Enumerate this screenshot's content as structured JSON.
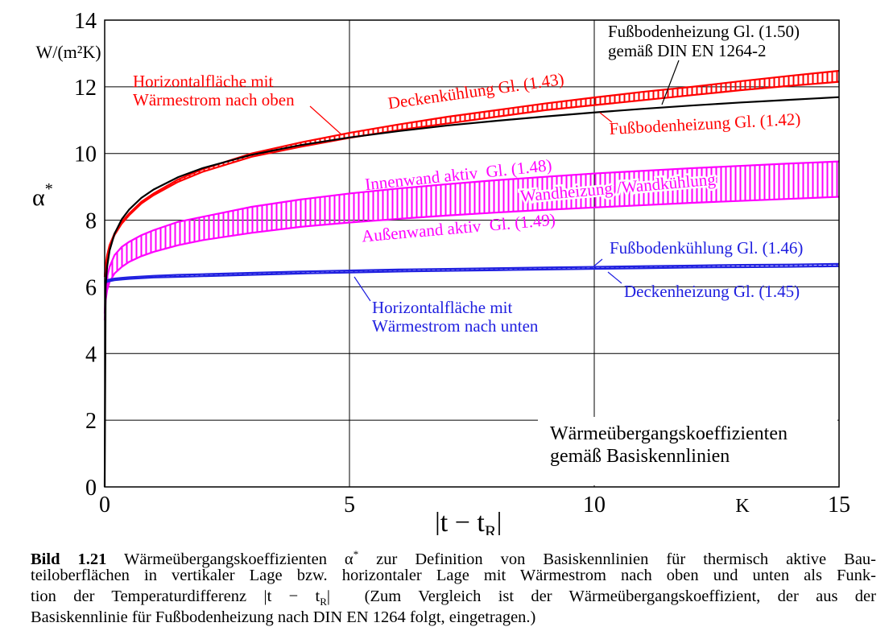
{
  "chart_data": {
    "type": "line",
    "y_unit": "W/(m²K)",
    "x_unit": "K",
    "ylabel": [
      "α",
      "*"
    ],
    "xlabel": [
      "|t − t",
      "R",
      "|"
    ],
    "x": [
      0,
      0.02,
      0.05,
      0.1,
      0.2,
      0.35,
      0.5,
      0.75,
      1,
      1.5,
      2,
      3,
      4,
      5,
      6,
      7,
      8,
      9,
      10,
      11,
      12,
      13,
      14,
      15
    ],
    "series": [
      {
        "name": "Deckenkühlung Gl. (1.43)",
        "color": "#ff0000",
        "values": [
          6.3,
          6.65,
          6.95,
          7.25,
          7.6,
          7.95,
          8.2,
          8.55,
          8.8,
          9.22,
          9.53,
          10.0,
          10.33,
          10.62,
          10.87,
          11.1,
          11.3,
          11.5,
          11.68,
          11.85,
          12.0,
          12.17,
          12.33,
          12.48
        ]
      },
      {
        "name": "Fußbodenheizung Gl. (1.42)",
        "color": "#ff0000",
        "values": [
          6.3,
          6.6,
          6.9,
          7.2,
          7.55,
          7.9,
          8.15,
          8.5,
          8.75,
          9.15,
          9.45,
          9.9,
          10.2,
          10.47,
          10.7,
          10.9,
          11.1,
          11.3,
          11.45,
          11.6,
          11.75,
          11.9,
          12.03,
          12.15
        ]
      },
      {
        "name": "Innenwand aktiv  Gl. (1.48)",
        "color": "#ff00ff",
        "values": [
          5.2,
          5.9,
          6.3,
          6.6,
          6.95,
          7.2,
          7.35,
          7.55,
          7.7,
          7.95,
          8.1,
          8.4,
          8.62,
          8.8,
          8.95,
          9.08,
          9.2,
          9.3,
          9.4,
          9.48,
          9.56,
          9.63,
          9.7,
          9.76
        ]
      },
      {
        "name": "Außenwand aktiv  Gl. (1.49)",
        "color": "#ff00ff",
        "values": [
          5.0,
          5.6,
          5.9,
          6.15,
          6.4,
          6.6,
          6.75,
          6.92,
          7.05,
          7.25,
          7.4,
          7.62,
          7.8,
          7.93,
          8.04,
          8.14,
          8.23,
          8.31,
          8.38,
          8.45,
          8.52,
          8.58,
          8.64,
          8.7
        ]
      },
      {
        "name": "Fußbodenkühlung Gl. (1.46)",
        "color": "#2020e0",
        "values": [
          6.15,
          6.18,
          6.2,
          6.22,
          6.25,
          6.27,
          6.29,
          6.31,
          6.33,
          6.36,
          6.38,
          6.42,
          6.46,
          6.49,
          6.52,
          6.54,
          6.56,
          6.58,
          6.6,
          6.62,
          6.64,
          6.66,
          6.67,
          6.69
        ]
      },
      {
        "name": "Deckenheizung Gl. (1.45)",
        "color": "#2020e0",
        "values": [
          6.1,
          6.13,
          6.15,
          6.17,
          6.2,
          6.22,
          6.24,
          6.26,
          6.28,
          6.3,
          6.32,
          6.36,
          6.4,
          6.43,
          6.46,
          6.48,
          6.5,
          6.52,
          6.54,
          6.56,
          6.58,
          6.59,
          6.6,
          6.62
        ]
      },
      {
        "name": "Fußbodenheizung Gl. (1.50)",
        "color": "#000000",
        "values": [
          0,
          6.03,
          6.61,
          7.09,
          7.59,
          8.03,
          8.32,
          8.67,
          8.92,
          9.29,
          9.56,
          9.96,
          10.25,
          10.48,
          10.67,
          10.84,
          10.98,
          11.11,
          11.23,
          11.34,
          11.44,
          11.53,
          11.61,
          11.69
        ]
      }
    ],
    "annotations": [
      {
        "lines": [
          "gemäß DIN EN 1264-2"
        ],
        "color": "#000000"
      },
      {
        "lines": [
          "Horizontalfläche mit",
          "Wärmestrom nach oben"
        ],
        "color": "#ff0000"
      },
      {
        "lines": [
          "Wandheizung /Wandkühlung"
        ],
        "color": "#ff00ff"
      },
      {
        "lines": [
          "Horizontalfläche mit",
          "Wärmestrom nach unten"
        ],
        "color": "#2020e0"
      },
      {
        "lines": [
          "Wärmeübergangskoeffizienten",
          "gemäß Basiskennlinien"
        ],
        "color": "#000000"
      }
    ],
    "xlim": [
      0,
      15
    ],
    "ylim": [
      0,
      14
    ],
    "xticks": [
      0,
      5,
      10,
      15
    ],
    "yticks": [
      0,
      2,
      4,
      6,
      8,
      10,
      12,
      14
    ],
    "grid": true
  },
  "caption": {
    "label": "Bild 1.21",
    "line1": [
      " Wärmeübergangskoeffizienten α",
      "*",
      " zur Definition von Basiskennlinien für thermisch aktive Bau-"
    ],
    "line2": "teiloberflächen in vertikaler Lage bzw. horizontaler Lage mit Wärmestrom nach oben und unten als Funk-",
    "line3": [
      "tion der Temperaturdifferenz |t − t",
      "R",
      "|  (Zum Vergleich ist der Wärmeübergangskoeffizient, der aus der"
    ],
    "line4": "Basiskennlinie für Fußbodenheizung nach DIN EN 1264 folgt, eingetragen.)"
  }
}
